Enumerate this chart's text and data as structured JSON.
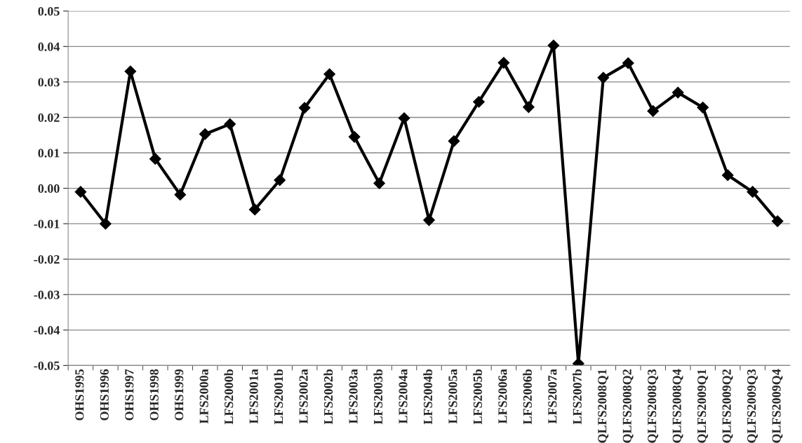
{
  "chart_data": {
    "type": "line",
    "categories": [
      "OHS1995",
      "OHS1996",
      "OHS1997",
      "OHS1998",
      "OHS1999",
      "LFS2000a",
      "LFS2000b",
      "LFS2001a",
      "LFS2001b",
      "LFS2002a",
      "LFS2002b",
      "LFS2003a",
      "LFS2003b",
      "LFS2004a",
      "LFS2004b",
      "LFS2005a",
      "LFS2005b",
      "LFS2006a",
      "LFS2006b",
      "LFS2007a",
      "LFS2007b",
      "QLFS2008Q1",
      "QLFS2008Q2",
      "QLFS2008Q3",
      "QLFS2008Q4",
      "QLFS2009Q1",
      "QLFS2009Q2",
      "QLFS2009Q3",
      "QLFS2009Q4"
    ],
    "series": [
      {
        "color": "#000000",
        "values": [
          -0.001,
          -0.01,
          0.033,
          0.0083,
          -0.0018,
          0.0153,
          0.0181,
          -0.006,
          0.0023,
          0.0227,
          0.0322,
          0.0145,
          0.0014,
          0.0198,
          -0.009,
          0.0133,
          0.0244,
          0.0354,
          0.0229,
          0.0403,
          -0.0495,
          0.0312,
          0.0353,
          0.0218,
          0.027,
          0.0228,
          0.0037,
          -0.001,
          -0.0093
        ]
      }
    ],
    "ylim": [
      -0.05,
      0.05
    ],
    "yticks": [
      {
        "value": -0.05,
        "label": "-0.05"
      },
      {
        "value": -0.04,
        "label": "-0.04"
      },
      {
        "value": -0.03,
        "label": "-0.03"
      },
      {
        "value": -0.02,
        "label": "-0.02"
      },
      {
        "value": -0.01,
        "label": "-0.01"
      },
      {
        "value": 0,
        "label": "0.00"
      },
      {
        "value": 0.01,
        "label": "0.01"
      },
      {
        "value": 0.02,
        "label": "0.02"
      },
      {
        "value": 0.03,
        "label": "0.03"
      },
      {
        "value": 0.04,
        "label": "0.04"
      },
      {
        "value": 0.05,
        "label": "0.05"
      }
    ],
    "grid": "y",
    "marker": "diamond",
    "line_style": "solid"
  }
}
